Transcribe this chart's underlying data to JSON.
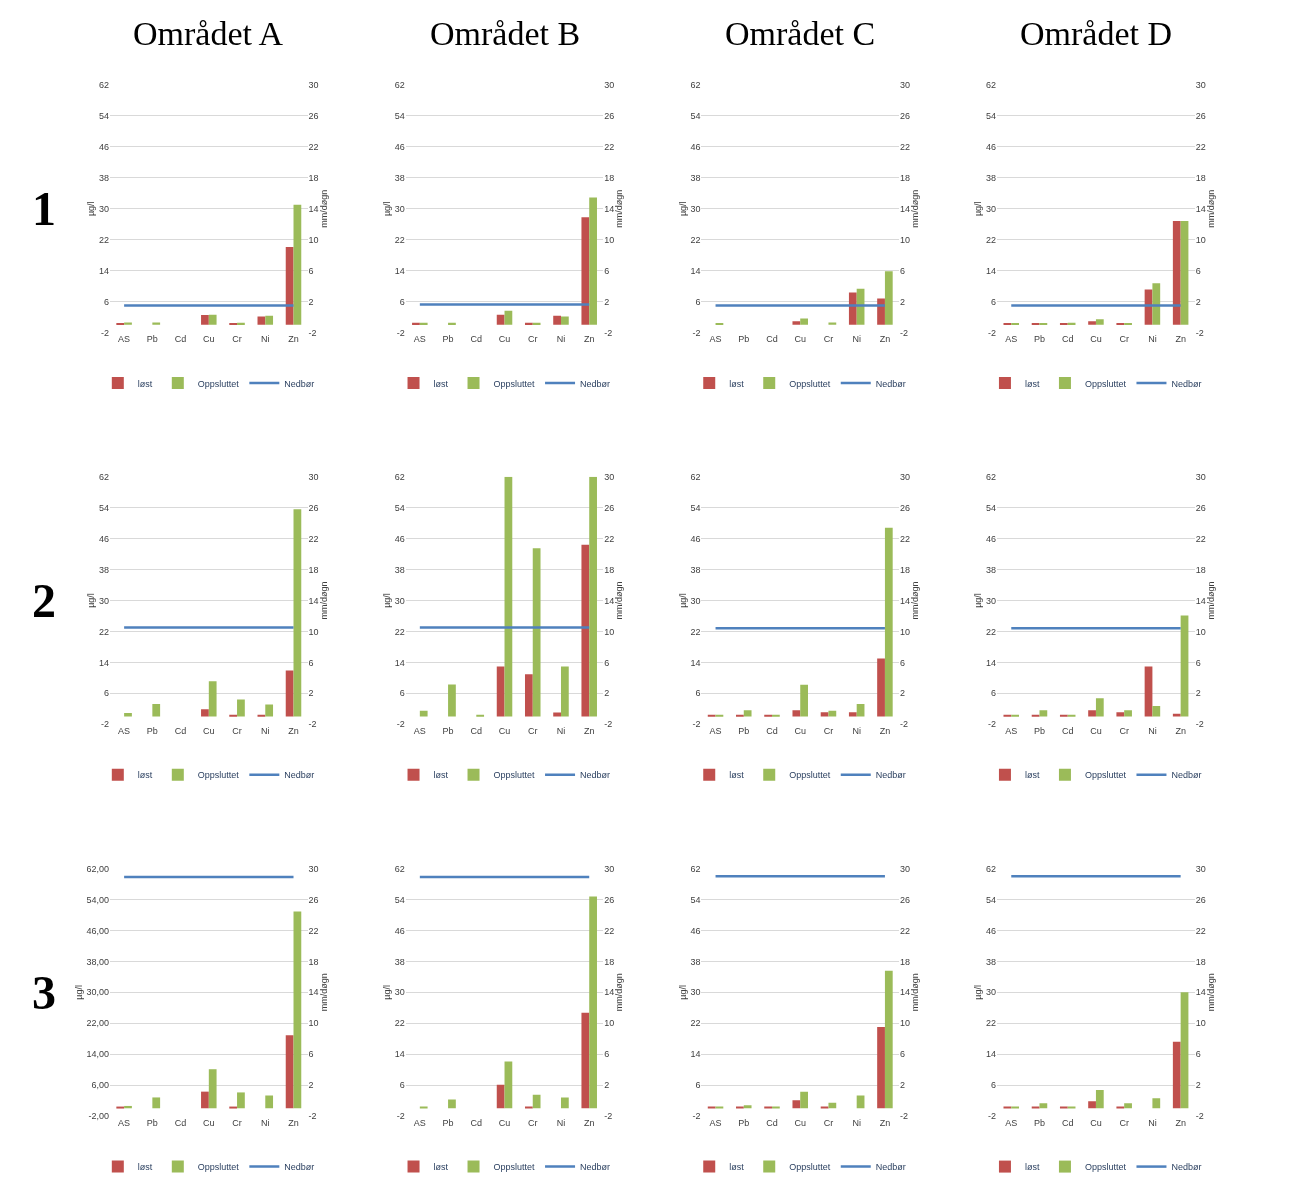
{
  "chart_data": [
    {
      "type": "bar",
      "title": "Området A",
      "annotations": [
        "1"
      ],
      "categories": [
        "AS",
        "Pb",
        "Cd",
        "Cu",
        "Cr",
        "Ni",
        "Zn"
      ],
      "ylabel": "µg/l",
      "y2label": "mm/døgn",
      "ylim": [
        -2,
        62
      ],
      "yticks": [
        -2,
        6,
        14,
        22,
        30,
        38,
        46,
        54,
        62
      ],
      "y2lim": [
        -2,
        30
      ],
      "y2ticks": [
        -2,
        2,
        6,
        10,
        14,
        18,
        22,
        26,
        30
      ],
      "grid": "y",
      "legend": "bottom",
      "series": [
        {
          "name": "løst",
          "color": "#c0504d",
          "values": [
            0.4,
            null,
            null,
            2.5,
            0.4,
            2.1,
            20.1
          ]
        },
        {
          "name": "Oppsluttet",
          "color": "#9bbb59",
          "values": [
            0.6,
            0.6,
            null,
            2.6,
            0.5,
            2.3,
            31
          ]
        },
        {
          "name": "Nedbør",
          "color": "#4f81bd",
          "type": "line",
          "axis": "y2",
          "values": [
            1.5,
            1.5,
            1.5,
            1.5,
            1.5,
            1.5,
            1.5
          ]
        }
      ]
    },
    {
      "type": "bar",
      "title": "Området B",
      "categories": [
        "AS",
        "Pb",
        "Cd",
        "Cu",
        "Cr",
        "Ni",
        "Zn"
      ],
      "ylabel": "µg/l",
      "y2label": "mm/døgn",
      "ylim": [
        -2,
        62
      ],
      "yticks": [
        -2,
        6,
        14,
        22,
        30,
        38,
        46,
        54,
        62
      ],
      "y2lim": [
        -2,
        30
      ],
      "y2ticks": [
        -2,
        2,
        6,
        10,
        14,
        18,
        22,
        26,
        30
      ],
      "grid": "y",
      "legend": "bottom",
      "series": [
        {
          "name": "løst",
          "color": "#c0504d",
          "values": [
            0.5,
            null,
            null,
            2.6,
            0.5,
            2.3,
            27.8
          ]
        },
        {
          "name": "Oppsluttet",
          "color": "#9bbb59",
          "values": [
            0.5,
            0.5,
            null,
            3.6,
            0.5,
            2.1,
            32.9
          ]
        },
        {
          "name": "Nedbør",
          "color": "#4f81bd",
          "type": "line",
          "axis": "y2",
          "values": [
            1.6,
            1.6,
            1.6,
            1.6,
            1.6,
            1.6,
            1.6
          ]
        }
      ]
    },
    {
      "type": "bar",
      "title": "Området C",
      "categories": [
        "AS",
        "Pb",
        "Cd",
        "Cu",
        "Cr",
        "Ni",
        "Zn"
      ],
      "ylabel": "µg/l",
      "y2label": "mm/døgn",
      "ylim": [
        -2,
        62
      ],
      "yticks": [
        -2,
        6,
        14,
        22,
        30,
        38,
        46,
        54,
        62
      ],
      "y2lim": [
        -2,
        30
      ],
      "y2ticks": [
        -2,
        2,
        6,
        10,
        14,
        18,
        22,
        26,
        30
      ],
      "grid": "y",
      "legend": "bottom",
      "series": [
        {
          "name": "løst",
          "color": "#c0504d",
          "values": [
            null,
            null,
            null,
            0.9,
            null,
            8.3,
            6.8
          ]
        },
        {
          "name": "Oppsluttet",
          "color": "#9bbb59",
          "values": [
            0.4,
            null,
            null,
            1.6,
            0.6,
            9.3,
            13.8
          ]
        },
        {
          "name": "Nedbør",
          "color": "#4f81bd",
          "type": "line",
          "axis": "y2",
          "values": [
            1.5,
            1.5,
            1.5,
            1.5,
            1.5,
            1.5,
            1.5
          ]
        }
      ]
    },
    {
      "type": "bar",
      "title": "Området D",
      "categories": [
        "AS",
        "Pb",
        "Cd",
        "Cu",
        "Cr",
        "Ni",
        "Zn"
      ],
      "ylabel": "µg/l",
      "y2label": "mm/døgn",
      "ylim": [
        -2,
        62
      ],
      "yticks": [
        -2,
        6,
        14,
        22,
        30,
        38,
        46,
        54,
        62
      ],
      "y2lim": [
        -2,
        30
      ],
      "y2ticks": [
        -2,
        2,
        6,
        10,
        14,
        18,
        22,
        26,
        30
      ],
      "grid": "y",
      "legend": "bottom",
      "series": [
        {
          "name": "løst",
          "color": "#c0504d",
          "values": [
            0.3,
            0.2,
            0.3,
            0.9,
            0.2,
            9.1,
            26.8
          ]
        },
        {
          "name": "Oppsluttet",
          "color": "#9bbb59",
          "values": [
            0.3,
            0.2,
            0.5,
            1.4,
            0.2,
            10.7,
            26.8
          ]
        },
        {
          "name": "Nedbør",
          "color": "#4f81bd",
          "type": "line",
          "axis": "y2",
          "values": [
            1.5,
            1.5,
            1.5,
            1.5,
            1.5,
            1.5,
            1.5
          ]
        }
      ]
    },
    {
      "type": "bar",
      "annotations": [
        "2"
      ],
      "categories": [
        "AS",
        "Pb",
        "Cd",
        "Cu",
        "Cr",
        "Ni",
        "Zn"
      ],
      "ylabel": "µg/l",
      "y2label": "mm/døgn",
      "ylim": [
        -2,
        62
      ],
      "yticks": [
        -2,
        6,
        14,
        22,
        30,
        38,
        46,
        54,
        62
      ],
      "y2lim": [
        -2,
        30
      ],
      "y2ticks": [
        -2,
        2,
        6,
        10,
        14,
        18,
        22,
        26,
        30
      ],
      "grid": "y",
      "legend": "bottom",
      "series": [
        {
          "name": "løst",
          "color": "#c0504d",
          "values": [
            null,
            null,
            null,
            1.9,
            0.4,
            0.4,
            11.9
          ]
        },
        {
          "name": "Oppsluttet",
          "color": "#9bbb59",
          "values": [
            0.9,
            3.2,
            null,
            9.1,
            4.4,
            3.1,
            53.6
          ]
        },
        {
          "name": "Nedbør",
          "color": "#4f81bd",
          "type": "line",
          "axis": "y2",
          "values": [
            10.5,
            10.5,
            10.5,
            10.5,
            10.5,
            10.5,
            10.5
          ]
        }
      ]
    },
    {
      "type": "bar",
      "categories": [
        "AS",
        "Pb",
        "Cd",
        "Cu",
        "Cr",
        "Ni",
        "Zn"
      ],
      "ylabel": "µg/l",
      "y2label": "mm/døgn",
      "ylim": [
        -2,
        62
      ],
      "yticks": [
        -2,
        6,
        14,
        22,
        30,
        38,
        46,
        54,
        62
      ],
      "y2lim": [
        -2,
        30
      ],
      "y2ticks": [
        -2,
        2,
        6,
        10,
        14,
        18,
        22,
        26,
        30
      ],
      "grid": "y",
      "legend": "bottom",
      "series": [
        {
          "name": "løst",
          "color": "#c0504d",
          "values": [
            null,
            null,
            null,
            12.9,
            10.9,
            1.0,
            44.4
          ]
        },
        {
          "name": "Oppsluttet",
          "color": "#9bbb59",
          "values": [
            1.5,
            8.3,
            0.3,
            62,
            43.5,
            12.9,
            62
          ]
        },
        {
          "name": "Nedbør",
          "color": "#4f81bd",
          "type": "line",
          "axis": "y2",
          "values": [
            10.5,
            10.5,
            10.5,
            10.5,
            10.5,
            10.5,
            10.5
          ]
        }
      ]
    },
    {
      "type": "bar",
      "categories": [
        "AS",
        "Pb",
        "Cd",
        "Cu",
        "Cr",
        "Ni",
        "Zn"
      ],
      "ylabel": "µg/l",
      "y2label": "mm/døgn",
      "ylim": [
        -2,
        62
      ],
      "yticks": [
        -2,
        6,
        14,
        22,
        30,
        38,
        46,
        54,
        62
      ],
      "y2lim": [
        -2,
        30
      ],
      "y2ticks": [
        -2,
        2,
        6,
        10,
        14,
        18,
        22,
        26,
        30
      ],
      "grid": "y",
      "legend": "bottom",
      "series": [
        {
          "name": "løst",
          "color": "#c0504d",
          "values": [
            0.3,
            0.3,
            0.3,
            1.6,
            1.1,
            1.1,
            15.0
          ]
        },
        {
          "name": "Oppsluttet",
          "color": "#9bbb59",
          "values": [
            0.4,
            1.6,
            0.2,
            8.2,
            1.5,
            3.2,
            48.8
          ]
        },
        {
          "name": "Nedbør",
          "color": "#4f81bd",
          "type": "line",
          "axis": "y2",
          "values": [
            10.4,
            10.4,
            10.4,
            10.4,
            10.4,
            10.4,
            10.4
          ]
        }
      ]
    },
    {
      "type": "bar",
      "categories": [
        "AS",
        "Pb",
        "Cd",
        "Cu",
        "Cr",
        "Ni",
        "Zn"
      ],
      "ylabel": "µg/l",
      "y2label": "mm/døgn",
      "ylim": [
        -2,
        62
      ],
      "yticks": [
        -2,
        6,
        14,
        22,
        30,
        38,
        46,
        54,
        62
      ],
      "y2lim": [
        -2,
        30
      ],
      "y2ticks": [
        -2,
        2,
        6,
        10,
        14,
        18,
        22,
        26,
        30
      ],
      "grid": "y",
      "legend": "bottom",
      "series": [
        {
          "name": "løst",
          "color": "#c0504d",
          "values": [
            0.3,
            0.3,
            0.2,
            1.6,
            1.1,
            12.9,
            0.7
          ]
        },
        {
          "name": "Oppsluttet",
          "color": "#9bbb59",
          "values": [
            0.4,
            1.6,
            0.2,
            4.7,
            1.6,
            2.7,
            26.1
          ]
        },
        {
          "name": "Nedbør",
          "color": "#4f81bd",
          "type": "line",
          "axis": "y2",
          "values": [
            10.4,
            10.4,
            10.4,
            10.4,
            10.4,
            10.4,
            10.4
          ]
        }
      ]
    },
    {
      "type": "bar",
      "annotations": [
        "3"
      ],
      "categories": [
        "AS",
        "Pb",
        "Cd",
        "Cu",
        "Cr",
        "Ni",
        "Zn"
      ],
      "ylabel": "µg/l",
      "y2label": "mm/døgn",
      "ylim": [
        -2,
        62
      ],
      "yticks": [
        {
          "value": -2,
          "label": "-2,00"
        },
        {
          "value": 6,
          "label": "6,00"
        },
        {
          "value": 14,
          "label": "14,00"
        },
        {
          "value": 22,
          "label": "22,00"
        },
        {
          "value": 30,
          "label": "30,00"
        },
        {
          "value": 38,
          "label": "38,00"
        },
        {
          "value": 46,
          "label": "46,00"
        },
        {
          "value": 54,
          "label": "54,00"
        },
        {
          "value": 62,
          "label": "62,00"
        }
      ],
      "y2lim": [
        -2,
        30
      ],
      "y2ticks": [
        -2,
        2,
        6,
        10,
        14,
        18,
        22,
        26,
        30
      ],
      "grid": "y",
      "legend": "bottom",
      "series": [
        {
          "name": "løst",
          "color": "#c0504d",
          "values": [
            0.4,
            null,
            null,
            4.3,
            0.4,
            null,
            18.9
          ]
        },
        {
          "name": "Oppsluttet",
          "color": "#9bbb59",
          "values": [
            0.6,
            2.8,
            null,
            10.1,
            4.1,
            3.3,
            50.9
          ]
        },
        {
          "name": "Nedbør",
          "color": "#4f81bd",
          "type": "line",
          "axis": "y2",
          "values": [
            28.9,
            28.9,
            28.9,
            28.9,
            28.9,
            28.9,
            28.9
          ]
        }
      ]
    },
    {
      "type": "bar",
      "categories": [
        "AS",
        "Pb",
        "Cd",
        "Cu",
        "Cr",
        "Ni",
        "Zn"
      ],
      "ylabel": "µg/l",
      "y2label": "mm/døgn",
      "ylim": [
        -2,
        62
      ],
      "yticks": [
        -2,
        6,
        14,
        22,
        30,
        38,
        46,
        54,
        62
      ],
      "y2lim": [
        -2,
        30
      ],
      "y2ticks": [
        -2,
        2,
        6,
        10,
        14,
        18,
        22,
        26,
        30
      ],
      "grid": "y",
      "legend": "bottom",
      "series": [
        {
          "name": "løst",
          "color": "#c0504d",
          "values": [
            null,
            null,
            null,
            6.1,
            0.4,
            null,
            24.7
          ]
        },
        {
          "name": "Oppsluttet",
          "color": "#9bbb59",
          "values": [
            0.4,
            2.3,
            null,
            12.1,
            3.5,
            2.8,
            54.8
          ]
        },
        {
          "name": "Nedbør",
          "color": "#4f81bd",
          "type": "line",
          "axis": "y2",
          "values": [
            28.9,
            28.9,
            28.9,
            28.9,
            28.9,
            28.9,
            28.9
          ]
        }
      ]
    },
    {
      "type": "bar",
      "categories": [
        "AS",
        "Pb",
        "Cd",
        "Cu",
        "Cr",
        "Ni",
        "Zn"
      ],
      "ylabel": "µg/l",
      "y2label": "mm/døgn",
      "ylim": [
        -2,
        62
      ],
      "yticks": [
        -2,
        6,
        14,
        22,
        30,
        38,
        46,
        54,
        62
      ],
      "y2lim": [
        -2,
        30
      ],
      "y2ticks": [
        -2,
        2,
        6,
        10,
        14,
        18,
        22,
        26,
        30
      ],
      "grid": "y",
      "legend": "bottom",
      "series": [
        {
          "name": "løst",
          "color": "#c0504d",
          "values": [
            0.2,
            0.2,
            0.2,
            2.1,
            0.3,
            null,
            21.0
          ]
        },
        {
          "name": "Oppsluttet",
          "color": "#9bbb59",
          "values": [
            0.3,
            0.8,
            0.2,
            4.3,
            1.4,
            3.3,
            35.6
          ]
        },
        {
          "name": "Nedbør",
          "color": "#4f81bd",
          "type": "line",
          "axis": "y2",
          "values": [
            29,
            29,
            29,
            29,
            29,
            29,
            29
          ]
        }
      ]
    },
    {
      "type": "bar",
      "categories": [
        "AS",
        "Pb",
        "Cd",
        "Cu",
        "Cr",
        "Ni",
        "Zn"
      ],
      "ylabel": "µg/l",
      "y2label": "mm/døgn",
      "ylim": [
        -2,
        62
      ],
      "yticks": [
        -2,
        6,
        14,
        22,
        30,
        38,
        46,
        54,
        62
      ],
      "y2lim": [
        -2,
        30
      ],
      "y2ticks": [
        -2,
        2,
        6,
        10,
        14,
        18,
        22,
        26,
        30
      ],
      "grid": "y",
      "legend": "bottom",
      "series": [
        {
          "name": "løst",
          "color": "#c0504d",
          "values": [
            0.3,
            0.3,
            0.2,
            1.8,
            0.3,
            null,
            17.2
          ]
        },
        {
          "name": "Oppsluttet",
          "color": "#9bbb59",
          "values": [
            0.3,
            1.3,
            0.2,
            4.7,
            1.3,
            2.6,
            30.0
          ]
        },
        {
          "name": "Nedbør",
          "color": "#4f81bd",
          "type": "line",
          "axis": "y2",
          "values": [
            29,
            29,
            29,
            29,
            29,
            29,
            29
          ]
        }
      ]
    }
  ]
}
